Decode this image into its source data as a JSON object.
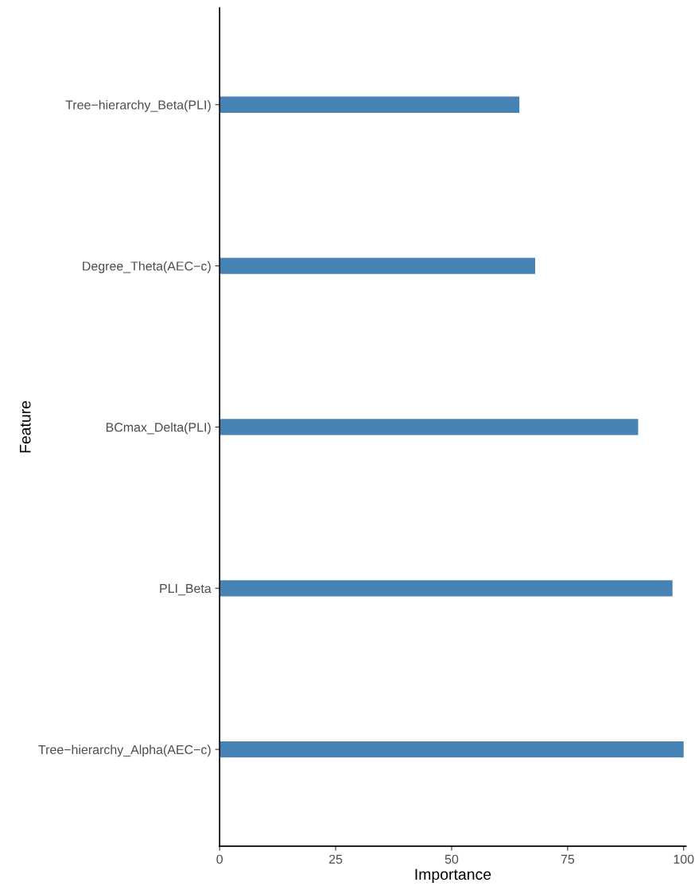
{
  "chart_data": {
    "type": "bar",
    "orientation": "horizontal",
    "xlabel": "Importance",
    "ylabel": "Feature",
    "categories": [
      "Tree−hierarchy_Beta(PLI)",
      "Degree_Theta(AEC−c)",
      "BCmax_Delta(PLI)",
      "PLI_Beta",
      "Tree−hierarchy_Alpha(AEC−c)"
    ],
    "values": [
      64.6,
      68.0,
      90.2,
      97.6,
      100
    ],
    "color": "#4682b4",
    "xlim": [
      0,
      100.5
    ],
    "xticks": [
      0,
      25,
      50,
      75,
      100
    ],
    "grid": false
  }
}
